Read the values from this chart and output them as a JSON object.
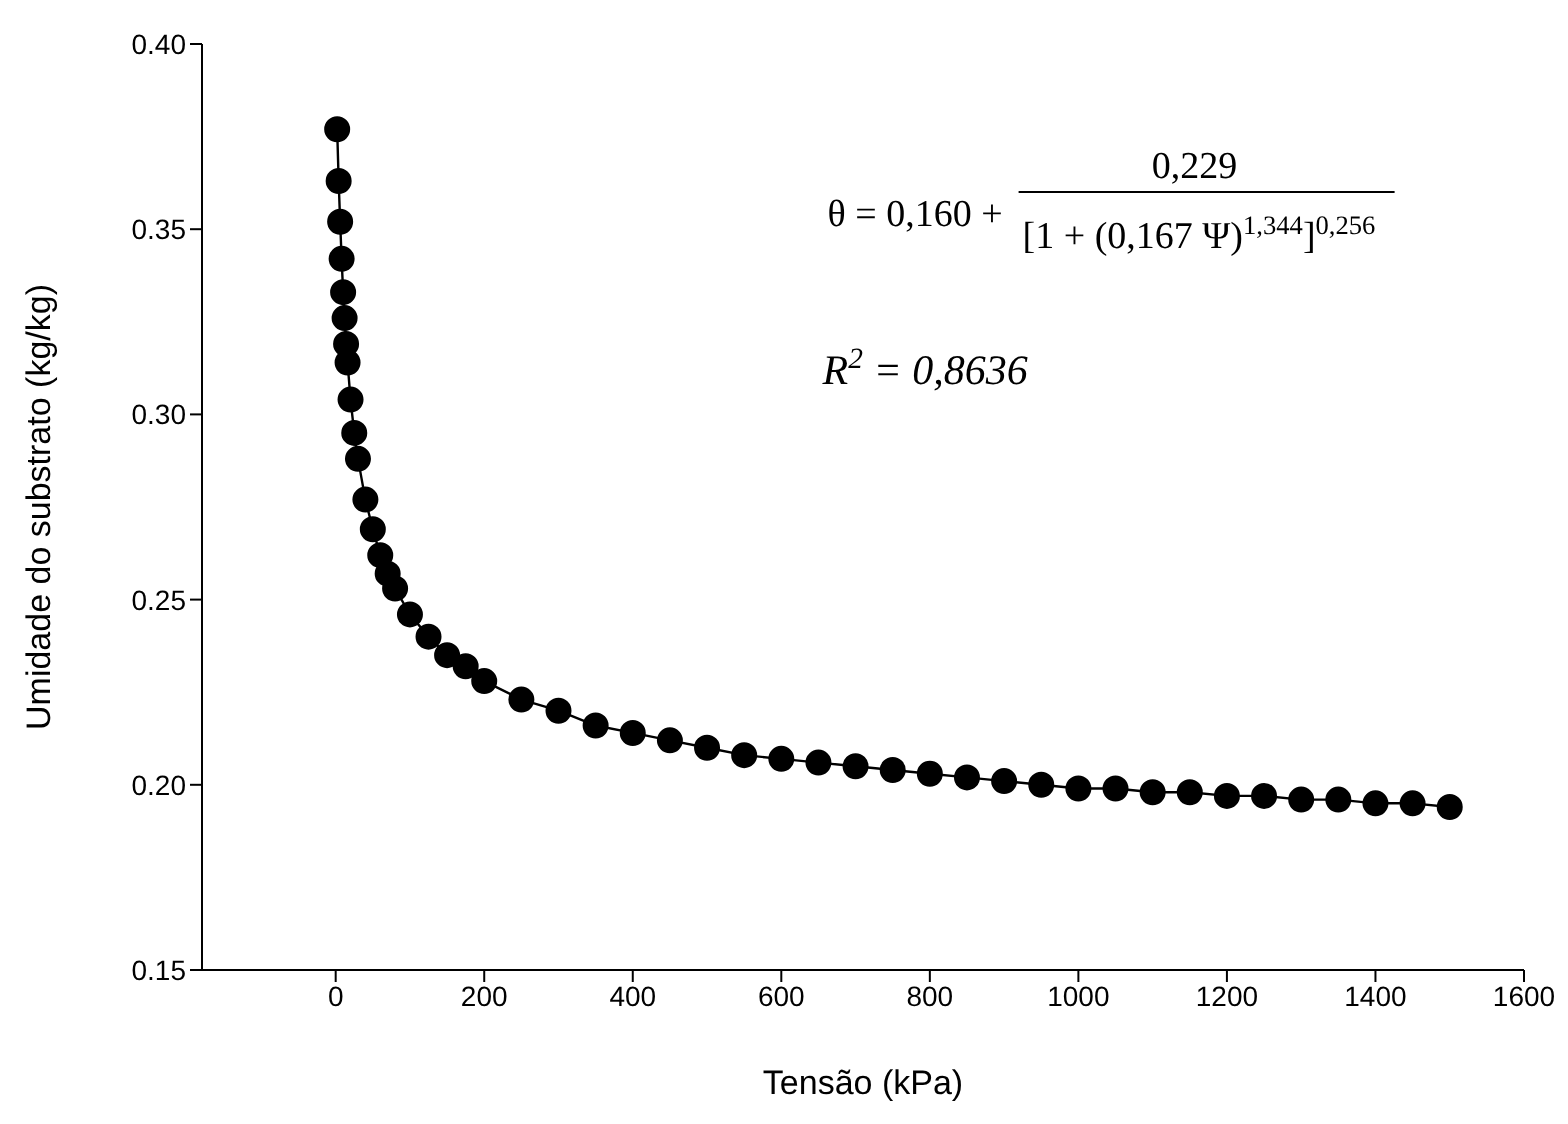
{
  "chart_data": {
    "type": "line",
    "xlabel": "Tensão (kPa)",
    "ylabel": "Umidade do substrato (kg/kg)",
    "x": [
      2,
      4,
      6,
      8,
      10,
      12,
      14,
      16,
      20,
      25,
      30,
      40,
      50,
      60,
      70,
      80,
      100,
      125,
      150,
      175,
      200,
      250,
      300,
      350,
      400,
      450,
      500,
      550,
      600,
      650,
      700,
      750,
      800,
      850,
      900,
      950,
      1000,
      1050,
      1100,
      1150,
      1200,
      1250,
      1300,
      1350,
      1400,
      1450,
      1500
    ],
    "series": [
      {
        "color": "#000000",
        "values": [
          0.377,
          0.363,
          0.352,
          0.342,
          0.333,
          0.326,
          0.319,
          0.314,
          0.304,
          0.295,
          0.288,
          0.277,
          0.269,
          0.262,
          0.257,
          0.253,
          0.246,
          0.24,
          0.235,
          0.232,
          0.228,
          0.223,
          0.22,
          0.216,
          0.214,
          0.212,
          0.21,
          0.208,
          0.207,
          0.206,
          0.205,
          0.204,
          0.203,
          0.202,
          0.201,
          0.2,
          0.199,
          0.199,
          0.198,
          0.198,
          0.197,
          0.197,
          0.196,
          0.196,
          0.195,
          0.195,
          0.194
        ]
      }
    ],
    "xlim": [
      -180,
      1600
    ],
    "xticks": [
      0,
      200,
      400,
      600,
      800,
      1000,
      1200,
      1400,
      1600
    ],
    "ylim": [
      0.15,
      0.4
    ],
    "yticks": [
      0.15,
      {
        "value": 0.2,
        "label": "0.20"
      },
      0.25,
      {
        "value": 0.3,
        "label": "0.30"
      },
      0.35,
      {
        "value": 0.4,
        "label": "0.40"
      }
    ],
    "marker": "circle",
    "line_style": "solid",
    "grid": false,
    "legend": false,
    "annotations": [
      "θ = 0,160 +",
      "0,229",
      "[1 + (0,167 Ψ)$^{1,344}$]$^{0,256}$",
      "R$^{2}$ = 0,8636"
    ]
  }
}
